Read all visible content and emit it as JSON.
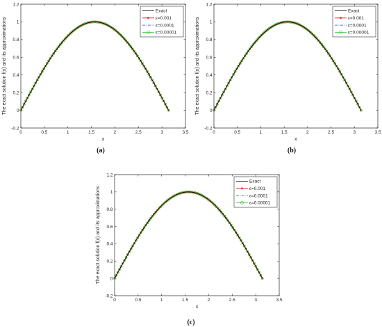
{
  "chart_data": [
    {
      "type": "line",
      "caption": "(a)",
      "xlabel": "x",
      "ylabel": "The exact solution f(x) and its approximations",
      "xlim": [
        0,
        3.5
      ],
      "ylim": [
        -0.2,
        1.2
      ],
      "xticks": [
        "0",
        "0.5",
        "1",
        "1.5",
        "2",
        "2.5",
        "3",
        "3.5"
      ],
      "yticks": [
        "-0.2",
        "0",
        "0.2",
        "0.4",
        "0.6",
        "0.8",
        "1",
        "1.2"
      ],
      "legend_position": "top-right",
      "x_range": [
        0,
        3.1416
      ],
      "series": [
        {
          "name": "Exact",
          "function": "sin(x)",
          "color": "#000000",
          "style": "solid"
        },
        {
          "name": "ε=0.001",
          "function": "sin(x)",
          "color": "#e31a1c",
          "style": "solid",
          "marker": "asterisk"
        },
        {
          "name": "ε=0.0001",
          "function": "sin(x)",
          "color": "#1f4fd6",
          "style": "dashdot"
        },
        {
          "name": "ε=0.00001",
          "function": "sin(x)",
          "color": "#22c322",
          "style": "solid",
          "marker": "circle"
        }
      ]
    },
    {
      "type": "line",
      "caption": "(b)",
      "xlabel": "x",
      "ylabel": "The exact solution f(x) and its approximations",
      "xlim": [
        0,
        3.5
      ],
      "ylim": [
        -0.2,
        1.2
      ],
      "xticks": [
        "0",
        "0.5",
        "1",
        "1.5",
        "2",
        "2.5",
        "3",
        "3.5"
      ],
      "yticks": [
        "-0.2",
        "0",
        "0.2",
        "0.4",
        "0.6",
        "0.8",
        "1",
        "1.2"
      ],
      "legend_position": "top-right",
      "x_range": [
        0,
        3.1416
      ],
      "series": [
        {
          "name": "Exact",
          "function": "sin(x)",
          "color": "#000000",
          "style": "solid"
        },
        {
          "name": "ε=0.001",
          "function": "sin(x)",
          "color": "#e31a1c",
          "style": "solid",
          "marker": "asterisk"
        },
        {
          "name": "ε=0.0001",
          "function": "sin(x)",
          "color": "#1f4fd6",
          "style": "dashdot"
        },
        {
          "name": "ε=0.00001",
          "function": "sin(x)",
          "color": "#22c322",
          "style": "solid",
          "marker": "circle"
        }
      ]
    },
    {
      "type": "line",
      "caption": "(c)",
      "xlabel": "x",
      "ylabel": "The exact solution f(x) and its approximations",
      "xlim": [
        0,
        3.5
      ],
      "ylim": [
        -0.2,
        1.2
      ],
      "xticks": [
        "0",
        "0.5",
        "1",
        "1.5",
        "2",
        "2.5",
        "3",
        "3.5"
      ],
      "yticks": [
        "-0.2",
        "0",
        "0.2",
        "0.4",
        "0.6",
        "0.8",
        "1",
        "1.2"
      ],
      "legend_position": "top-right",
      "x_range": [
        0,
        3.1416
      ],
      "series": [
        {
          "name": "Exact",
          "function": "sin(x)",
          "color": "#000000",
          "style": "solid"
        },
        {
          "name": "ε=0.001",
          "function": "sin(x)",
          "color": "#e31a1c",
          "style": "solid",
          "marker": "asterisk"
        },
        {
          "name": "ε=0.0001",
          "function": "sin(x)",
          "color": "#1f4fd6",
          "style": "dashdot"
        },
        {
          "name": "ε=0.00001",
          "function": "sin(x)",
          "color": "#22c322",
          "style": "solid",
          "marker": "circle"
        }
      ]
    }
  ]
}
